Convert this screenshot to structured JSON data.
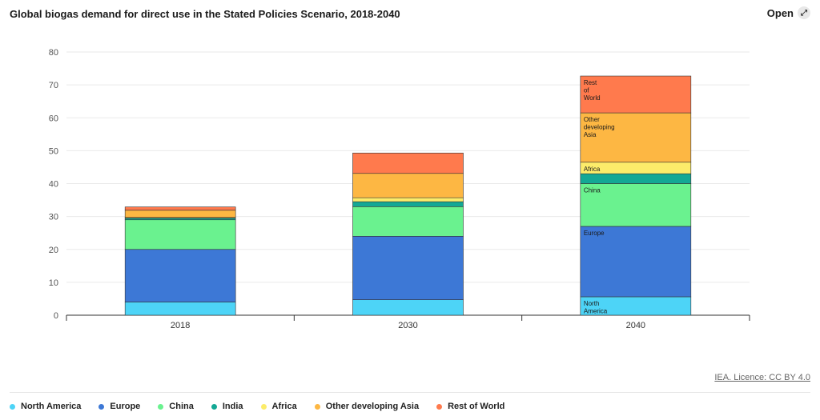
{
  "header": {
    "title": "Global biogas demand for direct use in the Stated Policies Scenario, 2018-2040",
    "open_label": "Open",
    "open_icon": "expand-icon"
  },
  "footer": {
    "licence_text": "IEA. Licence: CC BY 4.0"
  },
  "chart_data": {
    "type": "bar",
    "stacked": true,
    "title": "Global biogas demand for direct use in the Stated Policies Scenario, 2018-2040",
    "xlabel": "",
    "ylabel": "",
    "ylim": [
      0,
      80
    ],
    "yticks": [
      0,
      10,
      20,
      30,
      40,
      50,
      60,
      70,
      80
    ],
    "grid": true,
    "categories": [
      "2018",
      "2030",
      "2040"
    ],
    "series": [
      {
        "name": "North America",
        "color": "#4dd4f7",
        "values": [
          4.0,
          4.7,
          5.6
        ]
      },
      {
        "name": "Europe",
        "color": "#3d78d6",
        "values": [
          16.0,
          19.3,
          21.4
        ]
      },
      {
        "name": "China",
        "color": "#6af28f",
        "values": [
          9.0,
          9.0,
          13.0
        ]
      },
      {
        "name": "India",
        "color": "#13a895",
        "values": [
          0.5,
          1.5,
          3.0
        ]
      },
      {
        "name": "Africa",
        "color": "#fcec6a",
        "values": [
          0.2,
          1.2,
          3.5
        ]
      },
      {
        "name": "Other developing Asia",
        "color": "#fdb743",
        "values": [
          2.2,
          7.4,
          15.0
        ]
      },
      {
        "name": "Rest of World",
        "color": "#ff7a4d",
        "values": [
          1.0,
          6.2,
          11.2
        ]
      }
    ],
    "inline_labels": [
      {
        "series": 0,
        "category": 2,
        "lines": [
          "North",
          "America"
        ]
      },
      {
        "series": 1,
        "category": 2,
        "lines": [
          "Europe"
        ]
      },
      {
        "series": 2,
        "category": 2,
        "lines": [
          "China"
        ]
      },
      {
        "series": 4,
        "category": 2,
        "lines": [
          "Africa"
        ]
      },
      {
        "series": 5,
        "category": 2,
        "lines": [
          "Other",
          "developing",
          "Asia"
        ]
      },
      {
        "series": 6,
        "category": 2,
        "lines": [
          "Rest",
          "of",
          "World"
        ]
      }
    ],
    "legend_position": "bottom"
  }
}
